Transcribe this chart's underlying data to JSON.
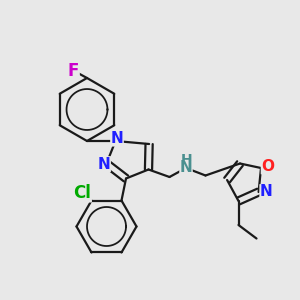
{
  "bg_color": "#e8e8e8",
  "bond_color": "#1a1a1a",
  "bond_width": 1.6,
  "fig_width": 3.0,
  "fig_height": 3.0,
  "dpi": 100,
  "colors": {
    "F": "#cc00cc",
    "N": "#2020ff",
    "NH": "#4a9090",
    "Cl": "#00aa00",
    "O": "#ff2020"
  }
}
